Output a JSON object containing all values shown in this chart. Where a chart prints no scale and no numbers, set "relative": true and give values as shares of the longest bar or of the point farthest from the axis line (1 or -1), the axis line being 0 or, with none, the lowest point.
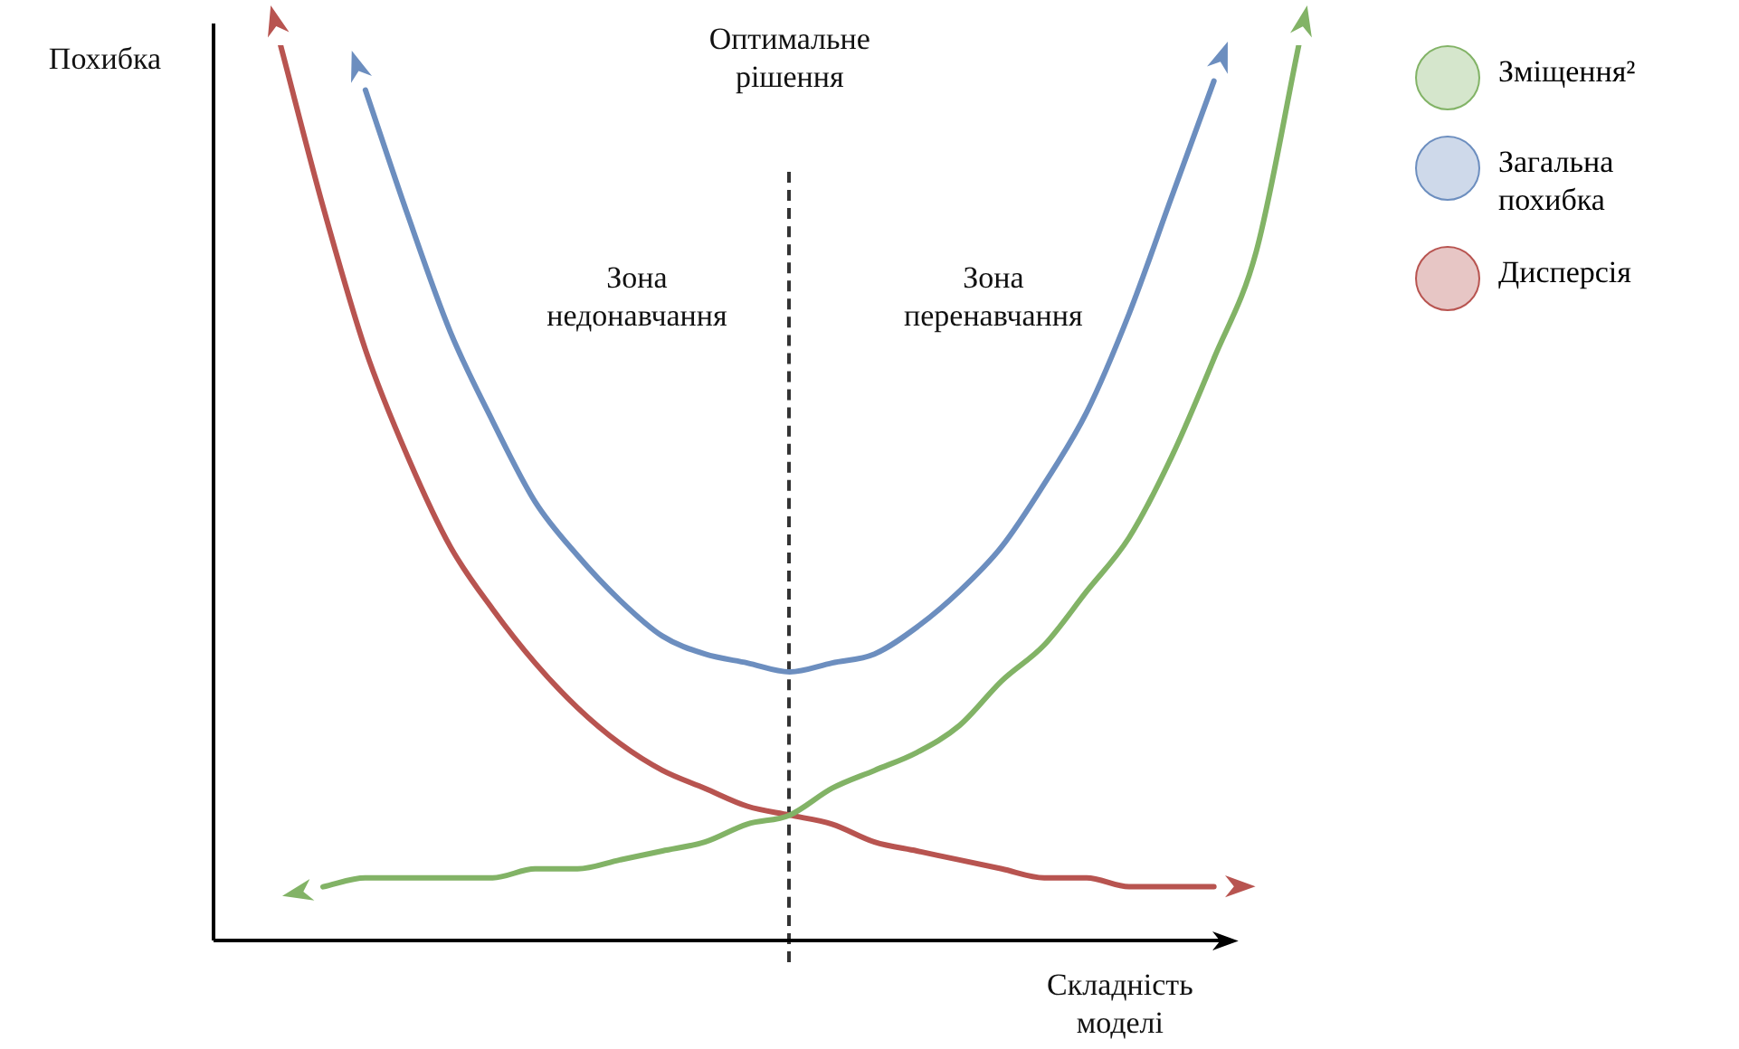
{
  "chart_data": {
    "type": "line",
    "relative": true,
    "legend": "top right",
    "line_style": "solid",
    "xlabel": "Складність моделі",
    "ylabel": "Похибка",
    "categories": [
      null,
      null,
      null,
      null,
      null,
      null,
      null,
      null,
      null,
      null,
      null,
      null,
      null,
      null,
      null,
      null,
      null,
      null,
      null,
      null,
      null,
      null,
      null,
      null,
      null
    ],
    "series": [
      {
        "name": "Зміщення²",
        "color": "#82b366",
        "values": [
          null,
          0.06,
          0.07,
          0.07,
          0.07,
          0.07,
          0.08,
          0.08,
          0.09,
          0.1,
          0.11,
          0.13,
          0.14,
          0.17,
          0.19,
          0.21,
          0.24,
          0.29,
          0.33,
          0.39,
          0.45,
          0.54,
          0.65,
          0.77,
          1.0
        ]
      },
      {
        "name": "Загальна похибка",
        "color": "#6c8ebf",
        "values": [
          null,
          null,
          0.95,
          0.81,
          0.68,
          0.58,
          0.49,
          0.43,
          0.38,
          0.34,
          0.32,
          0.31,
          0.3,
          0.31,
          0.32,
          0.35,
          0.39,
          0.44,
          0.51,
          0.59,
          0.7,
          0.83,
          0.96,
          null,
          null
        ]
      },
      {
        "name": "Дисперсія",
        "color": "#b85450",
        "values": [
          1.0,
          0.82,
          0.66,
          0.54,
          0.44,
          0.37,
          0.31,
          0.26,
          0.22,
          0.19,
          0.17,
          0.15,
          0.14,
          0.13,
          0.11,
          0.1,
          0.09,
          0.08,
          0.07,
          0.07,
          0.06,
          0.06,
          0.06,
          null,
          null
        ]
      }
    ],
    "annotations": [
      "Оптимальне рішення",
      "Зона недонавчання",
      "Зона перенавчання"
    ]
  }
}
